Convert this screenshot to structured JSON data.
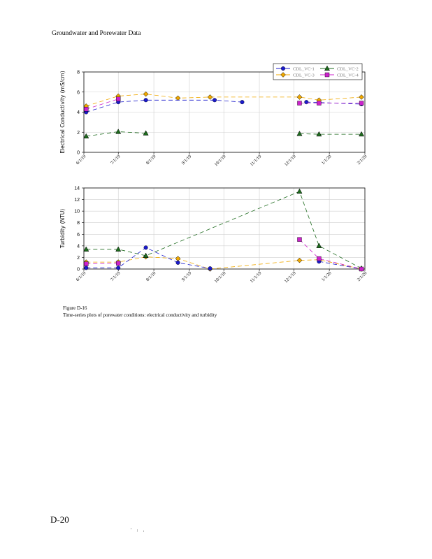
{
  "page": {
    "header": "Groundwater and Porewater Data",
    "page_number": "D-20",
    "footer_marks": "' ; ,"
  },
  "caption": {
    "figure": "Figure D-16",
    "text": "Time-series plots of porewater conditions: electrical conductivity and turbidity"
  },
  "colors": {
    "CDL_VC-1": "#1a1acc",
    "CDL_VC-2": "#1e6b1e",
    "CDL_VC-3": "#f0a800",
    "CDL_VC-4": "#cc22cc",
    "grid": "#d0d0d0"
  },
  "chart_data": [
    {
      "type": "line",
      "ylabel": "Electrical Conductivity (mS/cm)",
      "ylim": [
        0,
        8
      ],
      "yticks": [
        0,
        2,
        4,
        6,
        8
      ],
      "xlim": [
        "2019-06-01",
        "2020-02-01"
      ],
      "xticks": [
        "6/1/19",
        "7/1/19",
        "8/1/19",
        "9/1/19",
        "10/1/19",
        "11/1/19",
        "12/1/19",
        "1/1/20",
        "2/1/20"
      ],
      "grid": true,
      "legend": "top-right",
      "series": [
        {
          "name": "CDL_VC-1",
          "marker": "circle",
          "points": [
            [
              "2019-06-03",
              4.0
            ],
            [
              "2019-07-01",
              5.0
            ],
            [
              "2019-07-25",
              5.2
            ],
            [
              "2019-09-23",
              5.2
            ],
            [
              "2019-10-17",
              5.0
            ],
            [
              "2019-12-06",
              null
            ],
            [
              "2019-12-12",
              5.0
            ],
            [
              "2020-01-29",
              4.8
            ]
          ]
        },
        {
          "name": "CDL_VC-2",
          "marker": "triangle",
          "points": [
            [
              "2019-06-03",
              1.6
            ],
            [
              "2019-07-01",
              2.05
            ],
            [
              "2019-07-25",
              1.9
            ],
            [
              "2019-09-23",
              null
            ],
            [
              "2019-12-06",
              1.85
            ],
            [
              "2019-12-23",
              1.8
            ],
            [
              "2020-01-29",
              1.8
            ]
          ]
        },
        {
          "name": "CDL_VC-3",
          "marker": "diamond",
          "points": [
            [
              "2019-06-03",
              4.6
            ],
            [
              "2019-07-01",
              5.6
            ],
            [
              "2019-07-25",
              5.8
            ],
            [
              "2019-08-22",
              5.4
            ],
            [
              "2019-09-19",
              5.5
            ],
            [
              "2019-12-06",
              5.5
            ],
            [
              "2019-12-23",
              5.2
            ],
            [
              "2020-01-29",
              5.5
            ]
          ]
        },
        {
          "name": "CDL_VC-4",
          "marker": "square",
          "points": [
            [
              "2019-06-03",
              4.3
            ],
            [
              "2019-07-01",
              5.3
            ],
            [
              "2019-07-25",
              null
            ],
            [
              "2019-12-06",
              4.9
            ],
            [
              "2019-12-23",
              4.9
            ],
            [
              "2020-01-29",
              4.9
            ]
          ]
        }
      ]
    },
    {
      "type": "line",
      "ylabel": "Turbidity (NTU)",
      "ylim": [
        0,
        14
      ],
      "yticks": [
        0,
        2,
        4,
        6,
        8,
        10,
        12,
        14
      ],
      "xlim": [
        "2019-06-01",
        "2020-02-01"
      ],
      "xticks": [
        "6/1/19",
        "7/1/19",
        "8/1/19",
        "9/1/19",
        "10/1/19",
        "11/1/19",
        "12/1/19",
        "1/1/20",
        "2/1/20"
      ],
      "grid": true,
      "series": [
        {
          "name": "CDL_VC-1",
          "marker": "circle",
          "points": [
            [
              "2019-06-03",
              0.2
            ],
            [
              "2019-07-01",
              0.2
            ],
            [
              "2019-07-25",
              3.7
            ],
            [
              "2019-08-22",
              1.1
            ],
            [
              "2019-09-19",
              0.1
            ],
            [
              "2019-12-06",
              null
            ],
            [
              "2019-12-23",
              1.3
            ],
            [
              "2020-01-29",
              0.0
            ]
          ]
        },
        {
          "name": "CDL_VC-2",
          "marker": "triangle",
          "points": [
            [
              "2019-06-03",
              3.4
            ],
            [
              "2019-07-01",
              3.4
            ],
            [
              "2019-07-25",
              2.3
            ],
            [
              "2019-12-06",
              13.4
            ],
            [
              "2019-12-23",
              4.0
            ],
            [
              "2020-01-29",
              0.1
            ]
          ]
        },
        {
          "name": "CDL_VC-3",
          "marker": "diamond",
          "points": [
            [
              "2019-06-03",
              1.2
            ],
            [
              "2019-07-01",
              1.2
            ],
            [
              "2019-07-25",
              2.1
            ],
            [
              "2019-08-22",
              1.8
            ],
            [
              "2019-09-19",
              0.0
            ],
            [
              "2019-12-06",
              1.5
            ],
            [
              "2019-12-23",
              1.6
            ],
            [
              "2020-01-29",
              0.0
            ]
          ]
        },
        {
          "name": "CDL_VC-4",
          "marker": "square",
          "points": [
            [
              "2019-06-03",
              0.9
            ],
            [
              "2019-07-01",
              1.0
            ],
            [
              "2019-07-25",
              null
            ],
            [
              "2019-12-06",
              5.1
            ],
            [
              "2019-12-23",
              1.8
            ],
            [
              "2020-01-29",
              0.0
            ]
          ]
        }
      ]
    }
  ]
}
